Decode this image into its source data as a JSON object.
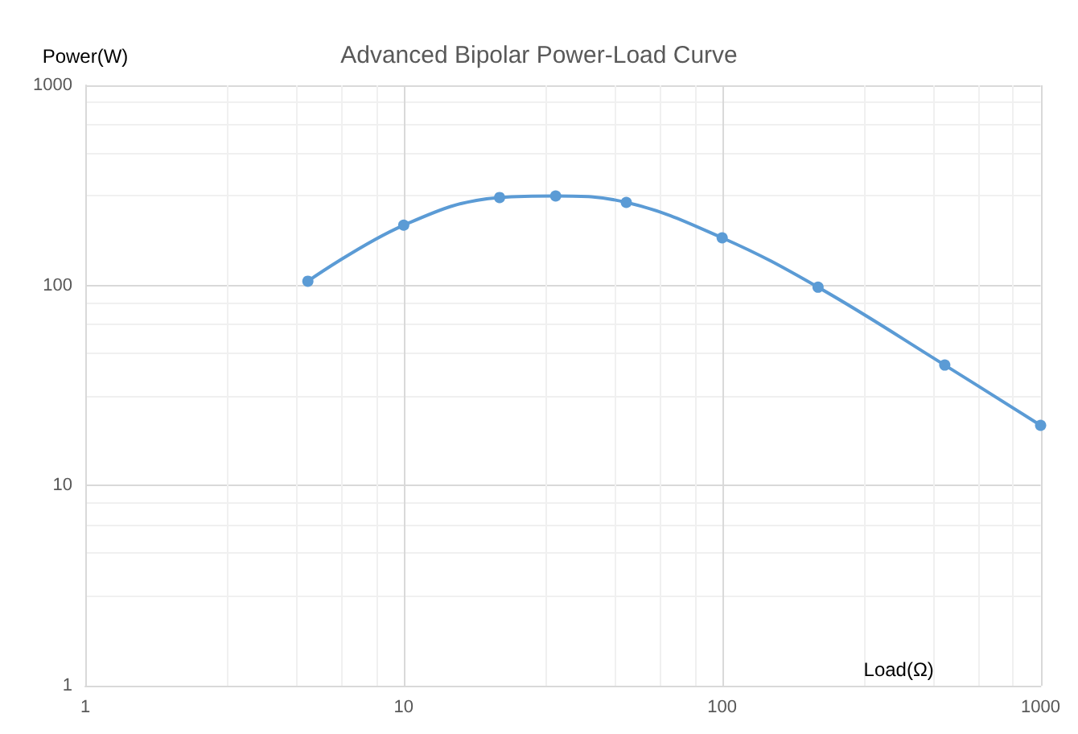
{
  "chart_data": {
    "type": "line",
    "title": "Advanced Bipolar Power-Load Curve",
    "xlabel": "Load(Ω)",
    "ylabel": "Power(W)",
    "x": [
      5,
      10,
      20,
      30,
      50,
      100,
      200,
      500,
      1000
    ],
    "series": [
      {
        "color": "#5b9bd5",
        "values": [
          105,
          200,
          275,
          280,
          260,
          173,
          98,
          40,
          20
        ]
      }
    ],
    "xlim": [
      1,
      1000
    ],
    "ylim": [
      1,
      1000
    ],
    "xticks": [
      1,
      10,
      100,
      1000
    ],
    "yticks": [
      1,
      10,
      100,
      1000
    ],
    "log": "xy",
    "grid": true,
    "marker": "circle",
    "line_style": "solid"
  }
}
